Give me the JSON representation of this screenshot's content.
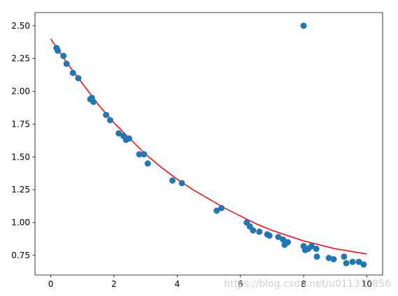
{
  "chart_data": {
    "type": "scatter",
    "title": "",
    "xlabel": "",
    "ylabel": "",
    "xlim": [
      -0.5,
      10.5
    ],
    "ylim": [
      0.6,
      2.6
    ],
    "x_ticks": [
      "0",
      "2",
      "4",
      "6",
      "8",
      "10"
    ],
    "y_ticks": [
      "0.75",
      "1.00",
      "1.25",
      "1.50",
      "1.75",
      "2.00",
      "2.25",
      "2.50"
    ],
    "grid": false,
    "legend": "none",
    "series": [
      {
        "kind": "scatter",
        "color": "#1f77b4",
        "points": [
          [
            0.18,
            2.33
          ],
          [
            0.22,
            2.31
          ],
          [
            0.4,
            2.27
          ],
          [
            0.5,
            2.21
          ],
          [
            0.7,
            2.14
          ],
          [
            0.87,
            2.1
          ],
          [
            1.25,
            1.94
          ],
          [
            1.3,
            1.95
          ],
          [
            1.35,
            1.92
          ],
          [
            1.75,
            1.82
          ],
          [
            1.88,
            1.78
          ],
          [
            2.15,
            1.68
          ],
          [
            2.3,
            1.66
          ],
          [
            2.38,
            1.63
          ],
          [
            2.48,
            1.64
          ],
          [
            2.8,
            1.52
          ],
          [
            2.95,
            1.52
          ],
          [
            3.07,
            1.45
          ],
          [
            3.85,
            1.32
          ],
          [
            4.15,
            1.3
          ],
          [
            5.25,
            1.09
          ],
          [
            5.4,
            1.11
          ],
          [
            6.2,
            1.0
          ],
          [
            6.3,
            0.97
          ],
          [
            6.4,
            0.94
          ],
          [
            6.6,
            0.93
          ],
          [
            6.85,
            0.91
          ],
          [
            6.92,
            0.9
          ],
          [
            7.2,
            0.89
          ],
          [
            7.35,
            0.87
          ],
          [
            7.4,
            0.83
          ],
          [
            7.5,
            0.85
          ],
          [
            8.0,
            2.5
          ],
          [
            8.0,
            0.82
          ],
          [
            8.05,
            0.79
          ],
          [
            8.15,
            0.8
          ],
          [
            8.25,
            0.82
          ],
          [
            8.4,
            0.8
          ],
          [
            8.42,
            0.74
          ],
          [
            8.8,
            0.73
          ],
          [
            8.95,
            0.72
          ],
          [
            9.28,
            0.74
          ],
          [
            9.35,
            0.69
          ],
          [
            9.55,
            0.7
          ],
          [
            9.75,
            0.7
          ],
          [
            9.9,
            0.68
          ]
        ]
      },
      {
        "kind": "line",
        "color": "#ff0000",
        "points": [
          [
            0.0,
            2.4
          ],
          [
            0.5,
            2.22
          ],
          [
            1.0,
            2.06
          ],
          [
            1.5,
            1.9
          ],
          [
            2.0,
            1.76
          ],
          [
            2.5,
            1.64
          ],
          [
            3.0,
            1.52
          ],
          [
            3.5,
            1.42
          ],
          [
            4.0,
            1.33
          ],
          [
            4.5,
            1.25
          ],
          [
            5.0,
            1.18
          ],
          [
            5.5,
            1.11
          ],
          [
            6.0,
            1.05
          ],
          [
            6.5,
            0.99
          ],
          [
            7.0,
            0.94
          ],
          [
            7.5,
            0.9
          ],
          [
            8.0,
            0.86
          ],
          [
            8.5,
            0.83
          ],
          [
            9.0,
            0.8
          ],
          [
            9.5,
            0.78
          ],
          [
            10.0,
            0.76
          ]
        ]
      }
    ]
  },
  "watermark": "https://blog.csdn.net/u011317856"
}
